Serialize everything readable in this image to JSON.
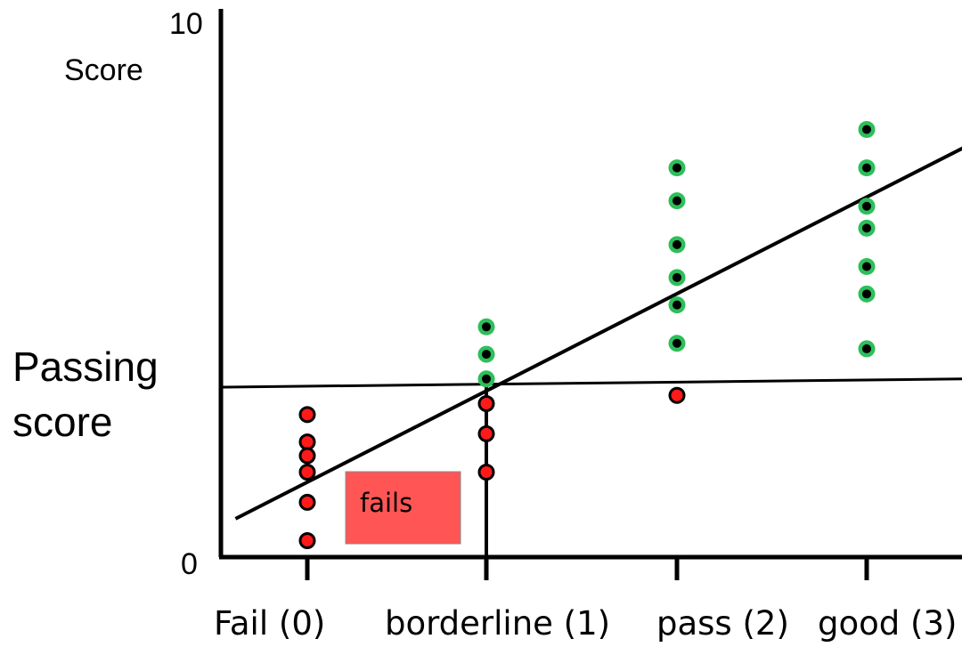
{
  "chart_data": {
    "type": "scatter",
    "title": "",
    "ylabel": "Score",
    "ylim": [
      0,
      10
    ],
    "y_tick_labels": [
      "0",
      "10"
    ],
    "categories": [
      "Fail (0)",
      "borderline (1)",
      "pass (2)",
      "good (3)"
    ],
    "passing_score_label": [
      "Passing",
      "score"
    ],
    "passing_score": [
      3.1,
      3.25
    ],
    "regression_line": {
      "start": [
        -0.38,
        0.7
      ],
      "end": [
        3.55,
        7.6
      ]
    },
    "annotation": "fails",
    "colors": {
      "pass": "#2dbf5a",
      "fail": "#ff1a1a",
      "fails_box": "#ff5555"
    },
    "points": {
      "pass": [
        {
          "x": 1,
          "y": 4.2
        },
        {
          "x": 1,
          "y": 3.7
        },
        {
          "x": 1,
          "y": 3.25
        },
        {
          "x": 2,
          "y": 7.1
        },
        {
          "x": 2,
          "y": 6.5
        },
        {
          "x": 2,
          "y": 5.7
        },
        {
          "x": 2,
          "y": 5.1
        },
        {
          "x": 2,
          "y": 4.6
        },
        {
          "x": 2,
          "y": 3.9
        },
        {
          "x": 3,
          "y": 7.8
        },
        {
          "x": 3,
          "y": 7.1
        },
        {
          "x": 3,
          "y": 6.4
        },
        {
          "x": 3,
          "y": 6.0
        },
        {
          "x": 3,
          "y": 5.3
        },
        {
          "x": 3,
          "y": 4.8
        },
        {
          "x": 3,
          "y": 3.8
        }
      ],
      "fail": [
        {
          "x": 0,
          "y": 2.6
        },
        {
          "x": 0,
          "y": 2.1
        },
        {
          "x": 0,
          "y": 1.85
        },
        {
          "x": 0,
          "y": 1.55
        },
        {
          "x": 0,
          "y": 1.0
        },
        {
          "x": 0,
          "y": 0.3
        },
        {
          "x": 1,
          "y": 2.8
        },
        {
          "x": 1,
          "y": 2.25
        },
        {
          "x": 1,
          "y": 1.55
        },
        {
          "x": 2,
          "y": 2.95
        }
      ]
    }
  }
}
